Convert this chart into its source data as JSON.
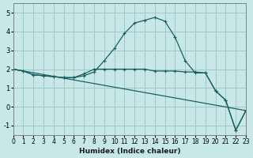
{
  "xlabel": "Humidex (Indice chaleur)",
  "ylabel": "",
  "xlim": [
    0,
    23
  ],
  "ylim": [
    -1.5,
    5.5
  ],
  "yticks": [
    -1,
    0,
    1,
    2,
    3,
    4,
    5
  ],
  "xticks": [
    0,
    1,
    2,
    3,
    4,
    5,
    6,
    7,
    8,
    9,
    10,
    11,
    12,
    13,
    14,
    15,
    16,
    17,
    18,
    19,
    20,
    21,
    22,
    23
  ],
  "background_color": "#c8e8e8",
  "grid_color": "#a0c8c8",
  "line_color": "#1a6060",
  "line_color2": "#1a6060",
  "lines": [
    {
      "x": [
        0,
        1,
        2,
        3,
        4,
        5,
        6,
        7,
        8,
        9,
        10,
        11,
        12,
        13,
        14,
        15,
        16,
        17,
        18,
        19,
        20,
        21,
        22,
        23
      ],
      "y": [
        2.0,
        1.9,
        1.7,
        1.65,
        1.6,
        1.55,
        1.55,
        1.65,
        1.85,
        2.45,
        3.1,
        3.9,
        4.45,
        4.6,
        4.75,
        4.55,
        3.7,
        2.45,
        1.8,
        1.8,
        0.85,
        0.35,
        -1.25,
        -0.2
      ]
    },
    {
      "x": [
        0,
        1,
        2,
        3,
        4,
        5,
        6,
        7,
        8,
        9,
        10,
        11,
        12,
        13,
        14,
        15,
        16,
        17,
        18,
        19,
        20,
        21,
        22,
        23
      ],
      "y": [
        2.0,
        1.9,
        1.7,
        1.65,
        1.6,
        1.55,
        1.55,
        1.75,
        2.0,
        2.0,
        2.0,
        2.0,
        2.0,
        2.0,
        1.9,
        1.9,
        1.9,
        1.85,
        1.85,
        1.8,
        0.85,
        0.35,
        -1.25,
        -0.2
      ]
    },
    {
      "x": [
        0,
        23
      ],
      "y": [
        2.0,
        -0.2
      ]
    }
  ]
}
